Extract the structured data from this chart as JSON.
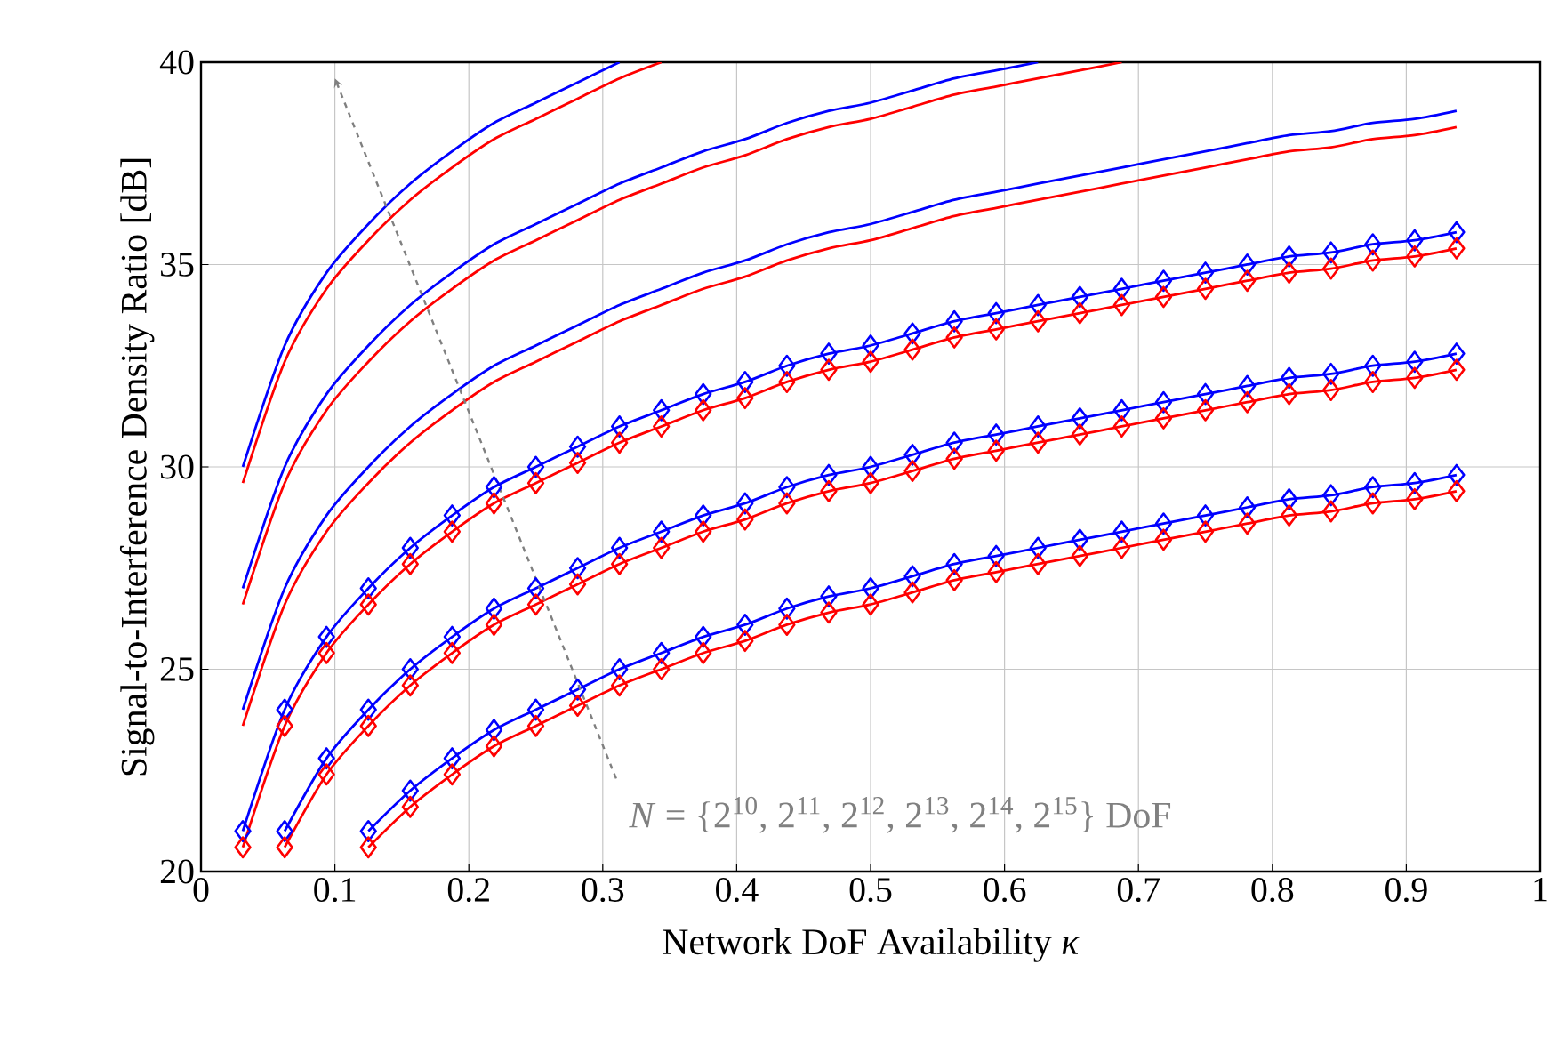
{
  "chart_data": {
    "type": "line",
    "xlabel": "Network DoF Availability *κ*",
    "ylabel": "Signal-to-Interference Density Ratio [dB]",
    "xlim": [
      0,
      1
    ],
    "ylim": [
      20,
      40
    ],
    "xticks": [
      0,
      0.1,
      0.2,
      0.3,
      0.4,
      0.5,
      0.6,
      0.7,
      0.8,
      0.9,
      1
    ],
    "yticks": [
      20,
      25,
      30,
      35,
      40
    ],
    "grid": true,
    "marker": "none",
    "line_style": "solid",
    "annotations": [
      "*N* = {2$^{10}$, 2$^{11}$, 2$^{12}$, 2$^{13}$, 2$^{14}$, 2$^{15}$} DoF"
    ],
    "series": [
      {
        "color": "#0000ff",
        "marker": "diamond",
        "x": [
          0.125,
          0.15625,
          0.1875,
          0.21875,
          0.25,
          0.28125,
          0.3125,
          0.34375,
          0.375,
          0.40625,
          0.4375,
          0.46875,
          0.5,
          0.53125,
          0.5625,
          0.59375,
          0.625,
          0.65625,
          0.6875,
          0.71875,
          0.75,
          0.78125,
          0.8125,
          0.84375,
          0.875,
          0.90625,
          0.9375
        ],
        "values": [
          21.0,
          22.0,
          22.8,
          23.5,
          24.0,
          24.5,
          25.0,
          25.4,
          25.8,
          26.1,
          26.5,
          26.8,
          27.0,
          27.3,
          27.6,
          27.8,
          28.0,
          28.2,
          28.4,
          28.6,
          28.8,
          29.0,
          29.2,
          29.3,
          29.5,
          29.6,
          29.8
        ]
      },
      {
        "color": "#ff0000",
        "marker": "diamond",
        "x": [
          0.125,
          0.15625,
          0.1875,
          0.21875,
          0.25,
          0.28125,
          0.3125,
          0.34375,
          0.375,
          0.40625,
          0.4375,
          0.46875,
          0.5,
          0.53125,
          0.5625,
          0.59375,
          0.625,
          0.65625,
          0.6875,
          0.71875,
          0.75,
          0.78125,
          0.8125,
          0.84375,
          0.875,
          0.90625,
          0.9375
        ],
        "values": [
          20.6,
          21.6,
          22.4,
          23.1,
          23.6,
          24.1,
          24.6,
          25.0,
          25.4,
          25.7,
          26.1,
          26.4,
          26.6,
          26.9,
          27.2,
          27.4,
          27.6,
          27.8,
          28.0,
          28.2,
          28.4,
          28.6,
          28.8,
          28.9,
          29.1,
          29.2,
          29.4
        ]
      },
      {
        "color": "#0000ff",
        "marker": "diamond",
        "x": [
          0.0625,
          0.09375,
          0.125,
          0.15625,
          0.1875,
          0.21875,
          0.25,
          0.28125,
          0.3125,
          0.34375,
          0.375,
          0.40625,
          0.4375,
          0.46875,
          0.5,
          0.53125,
          0.5625,
          0.59375,
          0.625,
          0.65625,
          0.6875,
          0.71875,
          0.75,
          0.78125,
          0.8125,
          0.84375,
          0.875,
          0.90625,
          0.9375
        ],
        "values": [
          21.0,
          22.8,
          24.0,
          25.0,
          25.8,
          26.5,
          27.0,
          27.5,
          28.0,
          28.4,
          28.8,
          29.1,
          29.5,
          29.8,
          30.0,
          30.3,
          30.6,
          30.8,
          31.0,
          31.2,
          31.4,
          31.6,
          31.8,
          32.0,
          32.2,
          32.3,
          32.5,
          32.6,
          32.8
        ]
      },
      {
        "color": "#ff0000",
        "marker": "diamond",
        "x": [
          0.0625,
          0.09375,
          0.125,
          0.15625,
          0.1875,
          0.21875,
          0.25,
          0.28125,
          0.3125,
          0.34375,
          0.375,
          0.40625,
          0.4375,
          0.46875,
          0.5,
          0.53125,
          0.5625,
          0.59375,
          0.625,
          0.65625,
          0.6875,
          0.71875,
          0.75,
          0.78125,
          0.8125,
          0.84375,
          0.875,
          0.90625,
          0.9375
        ],
        "values": [
          20.6,
          22.4,
          23.6,
          24.6,
          25.4,
          26.1,
          26.6,
          27.1,
          27.6,
          28.0,
          28.4,
          28.7,
          29.1,
          29.4,
          29.6,
          29.9,
          30.2,
          30.4,
          30.6,
          30.8,
          31.0,
          31.2,
          31.4,
          31.6,
          31.8,
          31.9,
          32.1,
          32.2,
          32.4
        ]
      },
      {
        "color": "#0000ff",
        "marker": "diamond",
        "x": [
          0.03125,
          0.0625,
          0.09375,
          0.125,
          0.15625,
          0.1875,
          0.21875,
          0.25,
          0.28125,
          0.3125,
          0.34375,
          0.375,
          0.40625,
          0.4375,
          0.46875,
          0.5,
          0.53125,
          0.5625,
          0.59375,
          0.625,
          0.65625,
          0.6875,
          0.71875,
          0.75,
          0.78125,
          0.8125,
          0.84375,
          0.875,
          0.90625,
          0.9375
        ],
        "values": [
          21.0,
          24.0,
          25.8,
          27.0,
          28.0,
          28.8,
          29.5,
          30.0,
          30.5,
          31.0,
          31.4,
          31.8,
          32.1,
          32.5,
          32.8,
          33.0,
          33.3,
          33.6,
          33.8,
          34.0,
          34.2,
          34.4,
          34.6,
          34.8,
          35.0,
          35.2,
          35.3,
          35.5,
          35.6,
          35.8
        ]
      },
      {
        "color": "#ff0000",
        "marker": "diamond",
        "x": [
          0.03125,
          0.0625,
          0.09375,
          0.125,
          0.15625,
          0.1875,
          0.21875,
          0.25,
          0.28125,
          0.3125,
          0.34375,
          0.375,
          0.40625,
          0.4375,
          0.46875,
          0.5,
          0.53125,
          0.5625,
          0.59375,
          0.625,
          0.65625,
          0.6875,
          0.71875,
          0.75,
          0.78125,
          0.8125,
          0.84375,
          0.875,
          0.90625,
          0.9375
        ],
        "values": [
          20.6,
          23.6,
          25.4,
          26.6,
          27.6,
          28.4,
          29.1,
          29.6,
          30.1,
          30.6,
          31.0,
          31.4,
          31.7,
          32.1,
          32.4,
          32.6,
          32.9,
          33.2,
          33.4,
          33.6,
          33.8,
          34.0,
          34.2,
          34.4,
          34.6,
          34.8,
          34.9,
          35.1,
          35.2,
          35.4
        ]
      },
      {
        "color": "#0000ff",
        "x": [
          0.03125,
          0.0625,
          0.09375,
          0.125,
          0.15625,
          0.1875,
          0.21875,
          0.25,
          0.28125,
          0.3125,
          0.34375,
          0.375,
          0.40625,
          0.4375,
          0.46875,
          0.5,
          0.53125,
          0.5625,
          0.59375,
          0.625,
          0.65625,
          0.6875,
          0.71875,
          0.75,
          0.78125,
          0.8125,
          0.84375,
          0.875,
          0.90625,
          0.9375
        ],
        "values": [
          24.0,
          27.0,
          28.8,
          30.0,
          31.0,
          31.8,
          32.5,
          33.0,
          33.5,
          34.0,
          34.4,
          34.8,
          35.1,
          35.5,
          35.8,
          36.0,
          36.3,
          36.6,
          36.8,
          37.0,
          37.2,
          37.4,
          37.6,
          37.8,
          38.0,
          38.2,
          38.3,
          38.5,
          38.6,
          38.8
        ]
      },
      {
        "color": "#ff0000",
        "x": [
          0.03125,
          0.0625,
          0.09375,
          0.125,
          0.15625,
          0.1875,
          0.21875,
          0.25,
          0.28125,
          0.3125,
          0.34375,
          0.375,
          0.40625,
          0.4375,
          0.46875,
          0.5,
          0.53125,
          0.5625,
          0.59375,
          0.625,
          0.65625,
          0.6875,
          0.71875,
          0.75,
          0.78125,
          0.8125,
          0.84375,
          0.875,
          0.90625,
          0.9375
        ],
        "values": [
          23.6,
          26.6,
          28.4,
          29.6,
          30.6,
          31.4,
          32.1,
          32.6,
          33.1,
          33.6,
          34.0,
          34.4,
          34.7,
          35.1,
          35.4,
          35.6,
          35.9,
          36.2,
          36.4,
          36.6,
          36.8,
          37.0,
          37.2,
          37.4,
          37.6,
          37.8,
          37.9,
          38.1,
          38.2,
          38.4
        ]
      },
      {
        "color": "#0000ff",
        "x": [
          0.03125,
          0.0625,
          0.09375,
          0.125,
          0.15625,
          0.1875,
          0.21875,
          0.25,
          0.28125,
          0.3125,
          0.34375,
          0.375,
          0.40625,
          0.4375,
          0.46875,
          0.5,
          0.53125,
          0.5625,
          0.59375,
          0.625
        ],
        "values": [
          27.0,
          30.0,
          31.8,
          33.0,
          34.0,
          34.8,
          35.5,
          36.0,
          36.5,
          37.0,
          37.4,
          37.8,
          38.1,
          38.5,
          38.8,
          39.0,
          39.3,
          39.6,
          39.8,
          40.0
        ]
      },
      {
        "color": "#ff0000",
        "x": [
          0.03125,
          0.0625,
          0.09375,
          0.125,
          0.15625,
          0.1875,
          0.21875,
          0.25,
          0.28125,
          0.3125,
          0.34375,
          0.375,
          0.40625,
          0.4375,
          0.46875,
          0.5,
          0.53125,
          0.5625,
          0.59375,
          0.625,
          0.65625,
          0.6875
        ],
        "values": [
          26.6,
          29.6,
          31.4,
          32.6,
          33.6,
          34.4,
          35.1,
          35.6,
          36.1,
          36.6,
          37.0,
          37.4,
          37.7,
          38.1,
          38.4,
          38.6,
          38.9,
          39.2,
          39.4,
          39.6,
          39.8,
          40.0
        ]
      },
      {
        "color": "#0000ff",
        "x": [
          0.03125,
          0.0625,
          0.09375,
          0.125,
          0.15625,
          0.1875,
          0.21875,
          0.25,
          0.28125,
          0.3125
        ],
        "values": [
          30.0,
          33.0,
          34.8,
          36.0,
          37.0,
          37.8,
          38.5,
          39.0,
          39.5,
          40.0
        ]
      },
      {
        "color": "#ff0000",
        "x": [
          0.03125,
          0.0625,
          0.09375,
          0.125,
          0.15625,
          0.1875,
          0.21875,
          0.25,
          0.28125,
          0.3125,
          0.34375
        ],
        "values": [
          29.6,
          32.6,
          34.4,
          35.6,
          36.6,
          37.4,
          38.1,
          38.6,
          39.1,
          39.6,
          40.0
        ]
      }
    ]
  }
}
